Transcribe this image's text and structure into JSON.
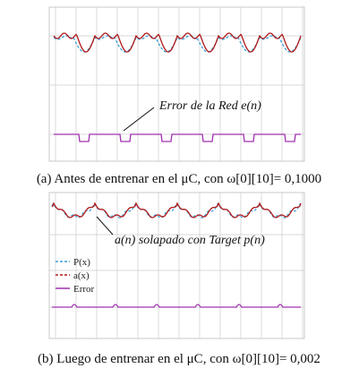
{
  "figure_a": {
    "annotation": "Error de la Red e(n)",
    "caption": "(a) Antes de entrenar en el μC, con ω[0][10]= 0,1000"
  },
  "figure_b": {
    "annotation": "a(n) solapado con Target p(n)",
    "legend": [
      "P(x)",
      "a(x)",
      "Error"
    ],
    "caption": "(b) Luego de entrenar en el μC, con ω[0][10]= 0,002"
  }
}
